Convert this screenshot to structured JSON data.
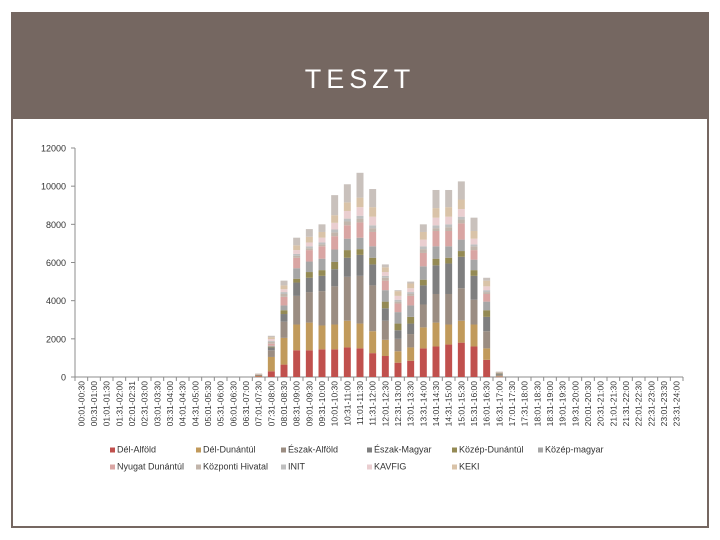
{
  "title": "TESZT",
  "chart_data": {
    "type": "bar",
    "stacked": true,
    "ylim": [
      0,
      12000
    ],
    "yticks": [
      0,
      2000,
      4000,
      6000,
      8000,
      10000,
      12000
    ],
    "categories": [
      "00:01-00:30",
      "00:31-01:00",
      "01:01-01:30",
      "01:31-02:00",
      "02:01-02:31",
      "02:31-03:00",
      "03:01-03:30",
      "03:31-04:00",
      "04:01-04:30",
      "04:31-05:00",
      "05:01-05:30",
      "05:31-06:00",
      "06:01-06:30",
      "06:31-07:00",
      "07:01-07:30",
      "07:31-08:00",
      "08:01-08:30",
      "08:31-09:00",
      "09:01-09:30",
      "09:31-10:00",
      "10:01-10:30",
      "10:31-11:00",
      "11:01-11:30",
      "11:31-12:00",
      "12:01-12:30",
      "12:31-13:00",
      "13:01-13:30",
      "13:31-14:00",
      "14:01-14:30",
      "14:31-15:00",
      "15:01-15:30",
      "15:31-16:00",
      "16:01-16:30",
      "16:31-17:00",
      "17:01-17:30",
      "17:31-18:00",
      "18:01-18:30",
      "18:31-19:00",
      "19:01-19:30",
      "19:31-20:00",
      "20:01-20:30",
      "20:31-21:00",
      "21:01-21:30",
      "21:31-22:00",
      "22:01-22:30",
      "22:31-23:00",
      "23:01-23:30",
      "23:31-24:00"
    ],
    "colors": [
      "#c0504d",
      "#c19a5b",
      "#9b8d82",
      "#7f7f7f",
      "#948a54",
      "#a6a6a6",
      "#d9a5a3",
      "#c2b5ab",
      "#bfbfbf",
      "#eaced0",
      "#d9c3a8",
      "#c9c1bc"
    ],
    "series": [
      {
        "name": "Dél-Alföld",
        "values": [
          0,
          0,
          0,
          0,
          0,
          0,
          0,
          0,
          0,
          0,
          0,
          0,
          0,
          0,
          30,
          300,
          650,
          1400,
          1400,
          1450,
          1450,
          1550,
          1500,
          1250,
          1100,
          750,
          850,
          1500,
          1600,
          1700,
          1800,
          1600,
          900,
          20,
          0,
          0,
          0,
          0,
          0,
          0,
          0,
          0,
          0,
          0,
          0,
          0,
          0,
          0
        ]
      },
      {
        "name": "Dél-Dunántúl",
        "values": [
          0,
          0,
          0,
          0,
          0,
          0,
          0,
          0,
          0,
          0,
          0,
          0,
          0,
          0,
          20,
          750,
          1400,
          1350,
          1450,
          1250,
          1300,
          1400,
          1300,
          1150,
          850,
          600,
          700,
          1100,
          1250,
          1050,
          1150,
          1150,
          600,
          20,
          0,
          0,
          0,
          0,
          0,
          0,
          0,
          0,
          0,
          0,
          0,
          0,
          0,
          0
        ]
      },
      {
        "name": "Észak-Alföld",
        "values": [
          0,
          0,
          0,
          0,
          0,
          0,
          0,
          0,
          0,
          0,
          0,
          0,
          0,
          0,
          30,
          350,
          850,
          1500,
          1600,
          1800,
          2000,
          2300,
          2500,
          2400,
          1000,
          650,
          700,
          1200,
          1500,
          1600,
          1700,
          1300,
          900,
          60,
          0,
          0,
          0,
          0,
          0,
          0,
          0,
          0,
          0,
          0,
          0,
          0,
          0,
          0
        ]
      },
      {
        "name": "Észak-Magyar",
        "values": [
          0,
          0,
          0,
          0,
          0,
          0,
          0,
          0,
          0,
          0,
          0,
          0,
          0,
          0,
          20,
          150,
          400,
          700,
          750,
          800,
          900,
          1000,
          1100,
          1100,
          650,
          450,
          550,
          1000,
          1500,
          1600,
          1650,
          1250,
          750,
          50,
          0,
          0,
          0,
          0,
          0,
          0,
          0,
          0,
          0,
          0,
          0,
          0,
          0,
          0
        ]
      },
      {
        "name": "Közép-Dunántúl",
        "values": [
          0,
          0,
          0,
          0,
          0,
          0,
          0,
          0,
          0,
          0,
          0,
          0,
          0,
          0,
          10,
          40,
          200,
          200,
          300,
          300,
          380,
          400,
          300,
          350,
          350,
          350,
          350,
          300,
          350,
          300,
          300,
          300,
          350,
          30,
          0,
          0,
          0,
          0,
          0,
          0,
          0,
          0,
          0,
          0,
          0,
          0,
          0,
          0
        ]
      },
      {
        "name": "Közép-magyar",
        "values": [
          0,
          0,
          0,
          0,
          0,
          0,
          0,
          0,
          0,
          0,
          0,
          0,
          0,
          0,
          10,
          50,
          250,
          550,
          550,
          600,
          650,
          600,
          600,
          600,
          600,
          600,
          600,
          700,
          650,
          600,
          600,
          550,
          450,
          30,
          0,
          0,
          0,
          0,
          0,
          0,
          0,
          0,
          0,
          0,
          0,
          0,
          0,
          0
        ]
      },
      {
        "name": "Nyugat-Dunántúl",
        "values": [
          0,
          0,
          0,
          0,
          0,
          0,
          0,
          0,
          0,
          0,
          0,
          0,
          0,
          0,
          10,
          100,
          450,
          550,
          600,
          650,
          700,
          700,
          800,
          750,
          500,
          450,
          500,
          700,
          800,
          800,
          850,
          500,
          400,
          20,
          0,
          0,
          0,
          0,
          0,
          0,
          0,
          0,
          0,
          0,
          0,
          0,
          0,
          0
        ]
      },
      {
        "name": "Központi Hivatal",
        "values": [
          0,
          0,
          0,
          0,
          0,
          0,
          0,
          0,
          0,
          0,
          0,
          0,
          0,
          0,
          10,
          100,
          150,
          100,
          100,
          100,
          200,
          200,
          200,
          200,
          150,
          100,
          100,
          200,
          150,
          200,
          200,
          200,
          100,
          10,
          0,
          0,
          0,
          0,
          0,
          0,
          0,
          0,
          0,
          0,
          0,
          0,
          0,
          0
        ]
      },
      {
        "name": "INIT",
        "values": [
          0,
          0,
          0,
          0,
          0,
          0,
          0,
          0,
          0,
          0,
          0,
          0,
          0,
          0,
          10,
          50,
          100,
          100,
          100,
          100,
          150,
          150,
          150,
          150,
          100,
          100,
          100,
          150,
          150,
          150,
          150,
          100,
          100,
          10,
          0,
          0,
          0,
          0,
          0,
          0,
          0,
          0,
          0,
          0,
          0,
          0,
          0,
          0
        ]
      },
      {
        "name": "KAVFIG",
        "values": [
          0,
          0,
          0,
          0,
          0,
          0,
          0,
          0,
          0,
          0,
          0,
          0,
          0,
          0,
          10,
          100,
          150,
          200,
          200,
          250,
          350,
          400,
          450,
          450,
          200,
          200,
          200,
          350,
          400,
          400,
          400,
          300,
          200,
          10,
          0,
          0,
          0,
          0,
          0,
          0,
          0,
          0,
          0,
          0,
          0,
          0,
          0,
          0
        ]
      },
      {
        "name": "KEKI",
        "values": [
          0,
          0,
          0,
          0,
          0,
          0,
          0,
          0,
          0,
          0,
          0,
          0,
          0,
          0,
          10,
          100,
          200,
          250,
          300,
          300,
          400,
          450,
          500,
          500,
          250,
          250,
          250,
          400,
          500,
          500,
          500,
          400,
          300,
          10,
          0,
          0,
          0,
          0,
          0,
          0,
          0,
          0,
          0,
          0,
          0,
          0,
          0,
          0
        ]
      },
      {
        "name": "",
        "values": [
          0,
          0,
          0,
          0,
          0,
          0,
          0,
          0,
          0,
          0,
          0,
          0,
          0,
          0,
          10,
          70,
          250,
          400,
          400,
          400,
          1050,
          950,
          1300,
          950,
          150,
          50,
          100,
          400,
          950,
          900,
          950,
          700,
          150,
          10,
          0,
          0,
          0,
          0,
          0,
          0,
          0,
          0,
          0,
          0,
          0,
          0,
          0,
          0
        ]
      }
    ],
    "legend": {
      "position": "bottom",
      "entries": [
        "Dél-Alföld",
        "Dél-Dunántúl",
        "Észak-Alföld",
        "Észak-Magyar",
        "Közép-Dunántúl",
        "Közép-magyar",
        "Nyugat Dunántúl",
        "Központi Hivatal",
        "INIT",
        "KAVFIG",
        "KEKI"
      ]
    }
  }
}
